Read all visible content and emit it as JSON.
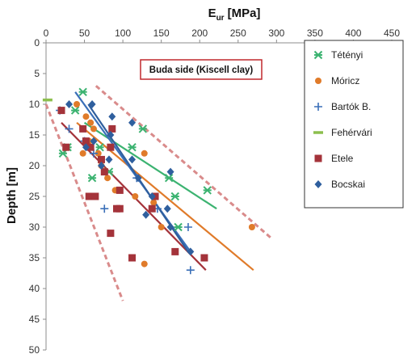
{
  "chart_data": {
    "type": "scatter",
    "x_title_main": "E",
    "x_title_sub": "ur",
    "x_title_unit": "[MPa]",
    "ylabel": "Depth [m]",
    "xlim": [
      0,
      450
    ],
    "ylim": [
      0,
      50
    ],
    "x_ticks": [
      "0",
      "50",
      "100",
      "150",
      "200",
      "250",
      "300",
      "350",
      "400",
      "450"
    ],
    "y_ticks": [
      "0",
      "5",
      "10",
      "15",
      "20",
      "25",
      "30",
      "35",
      "40",
      "45",
      "50"
    ],
    "x_axis_position": "top",
    "y_axis_inverted": true,
    "grid": false,
    "legend_position": "right",
    "annotation": "Buda side (Kiscell clay)",
    "series": [
      {
        "name": "Tétényi",
        "marker": "star",
        "color": "#3cb371",
        "points": [
          [
            48,
            8
          ],
          [
            38,
            11
          ],
          [
            28,
            17
          ],
          [
            22,
            18
          ],
          [
            70,
            17
          ],
          [
            60,
            22
          ],
          [
            82,
            21
          ],
          [
            112,
            17
          ],
          [
            126,
            14
          ],
          [
            160,
            22
          ],
          [
            168,
            25
          ],
          [
            172,
            30
          ],
          [
            210,
            24
          ]
        ],
        "trend": [
          [
            50,
            13
          ],
          [
            222,
            27
          ]
        ]
      },
      {
        "name": "Móricz",
        "marker": "circle",
        "color": "#e07b2a",
        "points": [
          [
            40,
            10
          ],
          [
            52,
            12
          ],
          [
            58,
            13
          ],
          [
            62,
            14
          ],
          [
            56,
            16
          ],
          [
            48,
            18
          ],
          [
            68,
            18
          ],
          [
            72,
            20
          ],
          [
            80,
            22
          ],
          [
            90,
            24
          ],
          [
            96,
            27
          ],
          [
            116,
            25
          ],
          [
            128,
            18
          ],
          [
            140,
            26
          ],
          [
            150,
            30
          ],
          [
            128,
            36
          ],
          [
            268,
            30
          ]
        ],
        "trend": [
          [
            40,
            13
          ],
          [
            270,
            37
          ]
        ]
      },
      {
        "name": "Bartók B.",
        "marker": "plus",
        "color": "#3a6fb8",
        "points": [
          [
            18,
            11
          ],
          [
            30,
            14
          ],
          [
            50,
            16
          ],
          [
            62,
            18
          ],
          [
            76,
            27
          ],
          [
            118,
            22
          ],
          [
            145,
            27
          ],
          [
            185,
            30
          ],
          [
            188,
            37
          ]
        ],
        "trend": [
          [
            38,
            8
          ],
          [
            188,
            34
          ]
        ]
      },
      {
        "name": "Fehérvári",
        "marker": "dash",
        "color": "#8cbf4e",
        "points": [
          [
            2,
            9.3
          ]
        ],
        "trend": []
      },
      {
        "name": "Etele",
        "marker": "square",
        "color": "#a4333a",
        "points": [
          [
            20,
            11
          ],
          [
            26,
            17
          ],
          [
            48,
            14
          ],
          [
            52,
            16
          ],
          [
            58,
            17
          ],
          [
            56,
            25
          ],
          [
            64,
            25
          ],
          [
            72,
            19
          ],
          [
            76,
            21
          ],
          [
            86,
            14
          ],
          [
            84,
            17
          ],
          [
            92,
            27
          ],
          [
            96,
            24
          ],
          [
            96,
            27
          ],
          [
            84,
            31
          ],
          [
            112,
            35
          ],
          [
            138,
            27
          ],
          [
            142,
            25
          ],
          [
            168,
            34
          ],
          [
            206,
            35
          ]
        ],
        "trend": [
          [
            20,
            13
          ],
          [
            208,
            37
          ]
        ]
      },
      {
        "name": "Bocskai",
        "marker": "diamond",
        "color": "#2f5f9e",
        "points": [
          [
            30,
            10
          ],
          [
            60,
            10
          ],
          [
            52,
            17
          ],
          [
            62,
            16
          ],
          [
            86,
            12
          ],
          [
            84,
            15
          ],
          [
            72,
            20
          ],
          [
            82,
            19
          ],
          [
            120,
            22
          ],
          [
            112,
            13
          ],
          [
            112,
            19
          ],
          [
            130,
            28
          ],
          [
            138,
            25
          ],
          [
            162,
            21
          ],
          [
            158,
            27
          ],
          [
            162,
            30
          ],
          [
            188,
            34
          ]
        ],
        "trend": [
          [
            55,
            10
          ],
          [
            185,
            34
          ]
        ]
      }
    ],
    "envelopes": [
      {
        "color": "#d98b8b",
        "line": [
          [
            65,
            7
          ],
          [
            295,
            32
          ]
        ]
      },
      {
        "color": "#d98b8b",
        "line": [
          [
            0,
            10
          ],
          [
            100,
            42
          ]
        ]
      }
    ]
  }
}
